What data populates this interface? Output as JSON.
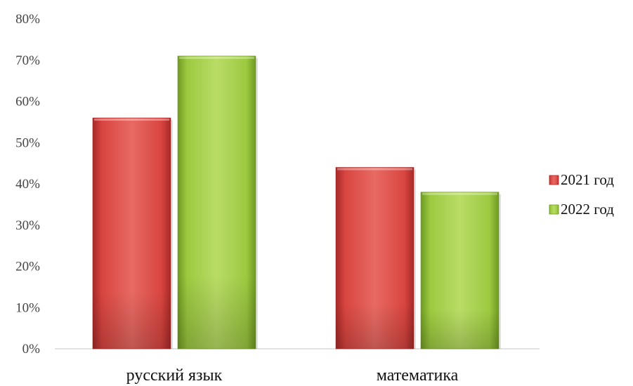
{
  "chart_data": {
    "type": "bar",
    "categories": [
      "русский язык",
      "математика"
    ],
    "series": [
      {
        "name": "2021 год",
        "values": [
          56,
          44
        ]
      },
      {
        "name": "2022 год",
        "values": [
          71,
          38
        ]
      }
    ],
    "y_ticks": [
      "0%",
      "10%",
      "20%",
      "30%",
      "40%",
      "50%",
      "60%",
      "70%",
      "80%"
    ],
    "ylim": [
      0,
      80
    ],
    "grid": false,
    "legend_position": "right",
    "colors": {
      "2021 год": {
        "main": "#d94540",
        "light": "#e86a63",
        "dark": "#a52a28"
      },
      "2022 год": {
        "main": "#9cc940",
        "light": "#b9dc66",
        "dark": "#6f9a22"
      }
    }
  }
}
